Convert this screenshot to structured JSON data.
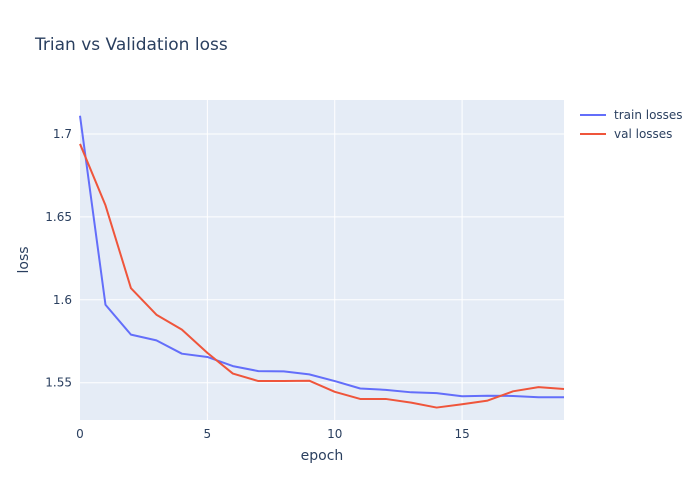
{
  "chart_data": {
    "type": "line",
    "title": "Trian vs Validation loss",
    "xlabel": "epoch",
    "ylabel": "loss",
    "xlim": [
      0,
      19
    ],
    "ylim": [
      1.5275,
      1.7205
    ],
    "x_ticks": [
      0,
      5,
      10,
      15
    ],
    "x_tick_labels": [
      "0",
      "5",
      "10",
      "15"
    ],
    "y_ticks": [
      1.55,
      1.6,
      1.65,
      1.7
    ],
    "y_tick_labels": [
      "1.55",
      "1.6",
      "1.65",
      "1.7"
    ],
    "grid": true,
    "legend_position": "top-right",
    "plot_bgcolor": "#e5ecf6",
    "x": [
      0,
      1,
      2,
      3,
      4,
      5,
      6,
      7,
      8,
      9,
      10,
      11,
      12,
      13,
      14,
      15,
      16,
      17,
      18,
      19
    ],
    "series": [
      {
        "name": "train losses",
        "color": "#636efa",
        "values": [
          1.711,
          1.597,
          1.579,
          1.5755,
          1.5675,
          1.5655,
          1.56,
          1.557,
          1.5568,
          1.555,
          1.551,
          1.5465,
          1.5457,
          1.5442,
          1.5437,
          1.5418,
          1.5421,
          1.542,
          1.5412,
          1.5412
        ]
      },
      {
        "name": "val losses",
        "color": "#ef553b",
        "values": [
          1.694,
          1.657,
          1.607,
          1.591,
          1.582,
          1.568,
          1.5555,
          1.551,
          1.551,
          1.5512,
          1.5445,
          1.5402,
          1.5402,
          1.538,
          1.535,
          1.537,
          1.5392,
          1.5448,
          1.5473,
          1.5462
        ]
      }
    ]
  }
}
